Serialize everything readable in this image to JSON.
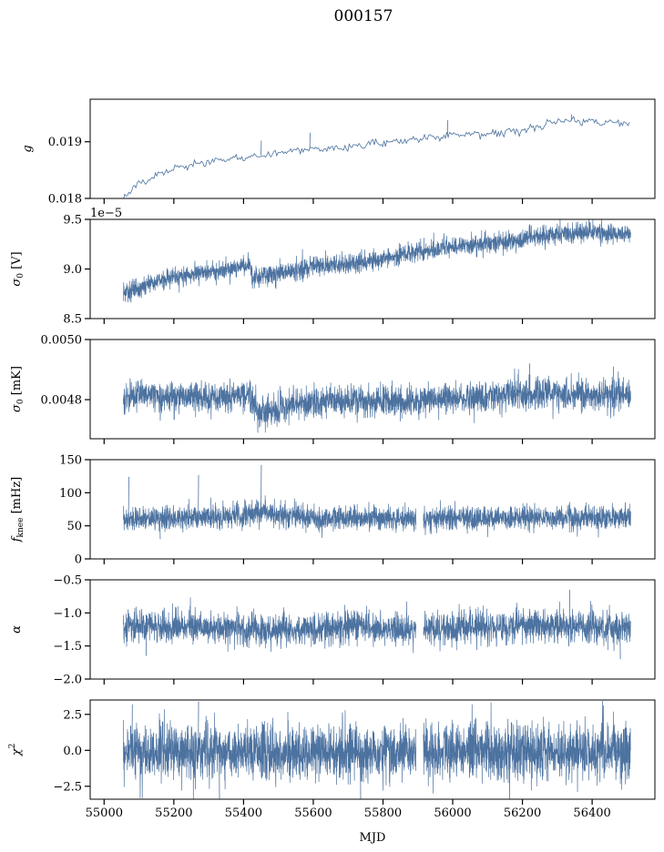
{
  "figure": {
    "title": "000157",
    "xlabel": "MJD"
  },
  "x_ticks": [
    55000,
    55200,
    55400,
    55600,
    55800,
    56000,
    56200,
    56400
  ],
  "series_color": "#4c72a0",
  "chart_data": [
    {
      "type": "line",
      "ylabel": "g",
      "ylabel_sub": "",
      "xlim": [
        54960,
        56580
      ],
      "ylim": [
        0.018,
        0.01975
      ],
      "yticks": [
        0.018,
        0.019
      ],
      "ytick_labels": [
        "0.018",
        "0.019"
      ],
      "noise": 3e-05,
      "style": "line",
      "trend": [
        [
          55055,
          0.01804
        ],
        [
          55100,
          0.01827
        ],
        [
          55200,
          0.01852
        ],
        [
          55300,
          0.01865
        ],
        [
          55400,
          0.01872
        ],
        [
          55500,
          0.0188
        ],
        [
          55600,
          0.01888
        ],
        [
          55700,
          0.0189
        ],
        [
          55800,
          0.01898
        ],
        [
          55900,
          0.01905
        ],
        [
          56000,
          0.01912
        ],
        [
          56100,
          0.01915
        ],
        [
          56200,
          0.0192
        ],
        [
          56300,
          0.01937
        ],
        [
          56400,
          0.01935
        ],
        [
          56510,
          0.01933
        ]
      ],
      "spikes": [
        [
          55450,
          0.01902
        ],
        [
          55590,
          0.01916
        ],
        [
          55985,
          0.01938
        ],
        [
          56340,
          0.01948
        ]
      ]
    },
    {
      "type": "line",
      "ylabel": "σ",
      "ylabel_sub": "0",
      "ylabel_unit": " [V]",
      "offset_text": "1e−5",
      "xlim": [
        54960,
        56580
      ],
      "ylim": [
        8.5,
        9.5
      ],
      "yticks": [
        8.5,
        9.0,
        9.5
      ],
      "ytick_labels": [
        "8.5",
        "9.0",
        "9.5"
      ],
      "noise": 0.05,
      "style": "band",
      "trend": [
        [
          55055,
          8.75
        ],
        [
          55100,
          8.82
        ],
        [
          55200,
          8.92
        ],
        [
          55300,
          8.97
        ],
        [
          55420,
          9.03
        ],
        [
          55425,
          8.9
        ],
        [
          55500,
          8.95
        ],
        [
          55600,
          9.03
        ],
        [
          55700,
          9.05
        ],
        [
          55800,
          9.1
        ],
        [
          55900,
          9.18
        ],
        [
          56000,
          9.22
        ],
        [
          56100,
          9.26
        ],
        [
          56200,
          9.3
        ],
        [
          56300,
          9.36
        ],
        [
          56400,
          9.37
        ],
        [
          56510,
          9.34
        ]
      ],
      "spikes": [
        [
          55060,
          8.67
        ],
        [
          56220,
          9.45
        ]
      ]
    },
    {
      "type": "line",
      "ylabel": "σ",
      "ylabel_sub": "0",
      "ylabel_unit": " [mK]",
      "xlim": [
        54960,
        56580
      ],
      "ylim": [
        0.00467,
        0.005
      ],
      "yticks": [
        0.0048,
        0.005
      ],
      "ytick_labels": [
        "0.0048",
        "0.0050"
      ],
      "noise": 2.5e-05,
      "style": "band",
      "trend": [
        [
          55055,
          0.004815
        ],
        [
          55200,
          0.00481
        ],
        [
          55300,
          0.004805
        ],
        [
          55420,
          0.004815
        ],
        [
          55440,
          0.004755
        ],
        [
          55550,
          0.004785
        ],
        [
          55700,
          0.004795
        ],
        [
          55900,
          0.004795
        ],
        [
          56000,
          0.004805
        ],
        [
          56200,
          0.004815
        ],
        [
          56300,
          0.00482
        ],
        [
          56510,
          0.004815
        ]
      ],
      "spikes": [
        [
          55440,
          0.00469
        ],
        [
          55600,
          0.00474
        ],
        [
          55980,
          0.00475
        ],
        [
          56220,
          0.00492
        ],
        [
          56460,
          0.00491
        ]
      ]
    },
    {
      "type": "line",
      "ylabel": "f",
      "ylabel_sub": "knee",
      "ylabel_unit": " [mHz]",
      "xlim": [
        54960,
        56580
      ],
      "ylim": [
        0,
        150
      ],
      "yticks": [
        0,
        50,
        100,
        150
      ],
      "ytick_labels": [
        "0",
        "50",
        "100",
        "150"
      ],
      "noise": 9,
      "style": "band",
      "gap": [
        55895,
        55915
      ],
      "trend": [
        [
          55055,
          62
        ],
        [
          55300,
          62
        ],
        [
          55450,
          70
        ],
        [
          55600,
          62
        ],
        [
          55900,
          60
        ],
        [
          56200,
          63
        ],
        [
          56510,
          62
        ]
      ],
      "spikes": [
        [
          55070,
          124
        ],
        [
          55270,
          127
        ],
        [
          55450,
          142
        ],
        [
          55160,
          30
        ]
      ]
    },
    {
      "type": "line",
      "ylabel": "α",
      "ylabel_sub": "",
      "xlim": [
        54960,
        56580
      ],
      "ylim": [
        -2.0,
        -0.5
      ],
      "yticks": [
        -2.0,
        -1.5,
        -1.0,
        -0.5
      ],
      "ytick_labels": [
        "−2.0",
        "−1.5",
        "−1.0",
        "−0.5"
      ],
      "noise": 0.12,
      "style": "band",
      "gap": [
        55895,
        55915
      ],
      "trend": [
        [
          55055,
          -1.2
        ],
        [
          55400,
          -1.22
        ],
        [
          55450,
          -1.28
        ],
        [
          55700,
          -1.22
        ],
        [
          55900,
          -1.25
        ],
        [
          56200,
          -1.2
        ],
        [
          56510,
          -1.22
        ]
      ],
      "spikes": [
        [
          56335,
          -0.65
        ],
        [
          56480,
          -1.7
        ],
        [
          55120,
          -1.65
        ]
      ]
    },
    {
      "type": "line",
      "ylabel": "χ",
      "ylabel_sub": "",
      "ylabel_sup": "2",
      "xlim": [
        54960,
        56580
      ],
      "ylim": [
        -3.4,
        3.5
      ],
      "yticks": [
        -2.5,
        0.0,
        2.5
      ],
      "ytick_labels": [
        "−2.5",
        "0.0",
        "2.5"
      ],
      "noise": 1.0,
      "style": "band",
      "gap": [
        55895,
        55915
      ],
      "trend": [
        [
          55055,
          -0.1
        ],
        [
          56510,
          -0.1
        ]
      ],
      "spikes": [
        [
          55270,
          3.4
        ],
        [
          55080,
          3.2
        ],
        [
          55735,
          -3.4
        ],
        [
          55330,
          -3.4
        ]
      ]
    }
  ]
}
